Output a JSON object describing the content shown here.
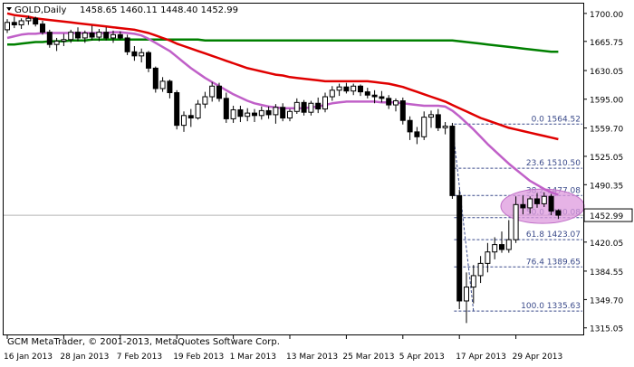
{
  "header": {
    "symbol_label": "GOLD,Daily",
    "ohlc": "1458.65 1460.11 1448.40 1452.99"
  },
  "watermark": "GCM MetaTrader, © 2001-2013, MetaQuotes Software Corp.",
  "colors": {
    "background": "#ffffff",
    "frame": "#000000",
    "candle": "#000000",
    "ma_fast": "#c060c8",
    "ma_mid": "#e00000",
    "ma_slow": "#008000",
    "fib_lines": "#3a4a8a",
    "fib_labels": "#3a4a8a",
    "current_price_line": "#b4b4b4",
    "highlight_ellipse": "#dd99dd"
  },
  "chart_data": {
    "type": "candlestick",
    "instrument": "GOLD",
    "timeframe": "Daily",
    "ylim": [
      1307,
      1712
    ],
    "y_ticks": [
      "1700.00",
      "1665.75",
      "1630.05",
      "1595.00",
      "1559.70",
      "1525.05",
      "1490.35",
      "1455.05",
      "1420.05",
      "1384.55",
      "1349.70",
      "1315.05"
    ],
    "x_ticks": [
      "16 Jan 2013",
      "28 Jan 2013",
      "7 Feb 2013",
      "19 Feb 2013",
      "1 Mar 2013",
      "13 Mar 2013",
      "25 Mar 2013",
      "5 Apr 2013",
      "17 Apr 2013",
      "29 Apr 2013"
    ],
    "current_price": "1452.99",
    "candles": [
      {
        "o": 1680,
        "h": 1693,
        "l": 1676,
        "c": 1689
      },
      {
        "o": 1689,
        "h": 1696,
        "l": 1682,
        "c": 1686
      },
      {
        "o": 1686,
        "h": 1694,
        "l": 1681,
        "c": 1691
      },
      {
        "o": 1691,
        "h": 1697,
        "l": 1686,
        "c": 1694
      },
      {
        "o": 1694,
        "h": 1696,
        "l": 1684,
        "c": 1687
      },
      {
        "o": 1687,
        "h": 1691,
        "l": 1674,
        "c": 1677
      },
      {
        "o": 1677,
        "h": 1680,
        "l": 1658,
        "c": 1662
      },
      {
        "o": 1662,
        "h": 1670,
        "l": 1654,
        "c": 1666
      },
      {
        "o": 1666,
        "h": 1675,
        "l": 1660,
        "c": 1668
      },
      {
        "o": 1668,
        "h": 1680,
        "l": 1664,
        "c": 1677
      },
      {
        "o": 1677,
        "h": 1683,
        "l": 1666,
        "c": 1670
      },
      {
        "o": 1670,
        "h": 1679,
        "l": 1664,
        "c": 1676
      },
      {
        "o": 1676,
        "h": 1685,
        "l": 1667,
        "c": 1671
      },
      {
        "o": 1671,
        "h": 1681,
        "l": 1666,
        "c": 1677
      },
      {
        "o": 1677,
        "h": 1683,
        "l": 1667,
        "c": 1670
      },
      {
        "o": 1670,
        "h": 1679,
        "l": 1664,
        "c": 1674
      },
      {
        "o": 1674,
        "h": 1678,
        "l": 1668,
        "c": 1670
      },
      {
        "o": 1670,
        "h": 1674,
        "l": 1649,
        "c": 1653
      },
      {
        "o": 1653,
        "h": 1660,
        "l": 1642,
        "c": 1648
      },
      {
        "o": 1648,
        "h": 1657,
        "l": 1640,
        "c": 1652
      },
      {
        "o": 1652,
        "h": 1654,
        "l": 1628,
        "c": 1633
      },
      {
        "o": 1633,
        "h": 1635,
        "l": 1603,
        "c": 1608
      },
      {
        "o": 1608,
        "h": 1622,
        "l": 1604,
        "c": 1617
      },
      {
        "o": 1617,
        "h": 1619,
        "l": 1596,
        "c": 1603
      },
      {
        "o": 1603,
        "h": 1606,
        "l": 1558,
        "c": 1563
      },
      {
        "o": 1563,
        "h": 1580,
        "l": 1555,
        "c": 1575
      },
      {
        "o": 1575,
        "h": 1583,
        "l": 1561,
        "c": 1572
      },
      {
        "o": 1572,
        "h": 1594,
        "l": 1570,
        "c": 1589
      },
      {
        "o": 1589,
        "h": 1604,
        "l": 1584,
        "c": 1598
      },
      {
        "o": 1598,
        "h": 1616,
        "l": 1592,
        "c": 1611
      },
      {
        "o": 1611,
        "h": 1615,
        "l": 1592,
        "c": 1596
      },
      {
        "o": 1596,
        "h": 1603,
        "l": 1566,
        "c": 1571
      },
      {
        "o": 1571,
        "h": 1587,
        "l": 1566,
        "c": 1582
      },
      {
        "o": 1582,
        "h": 1587,
        "l": 1567,
        "c": 1574
      },
      {
        "o": 1574,
        "h": 1584,
        "l": 1568,
        "c": 1578
      },
      {
        "o": 1578,
        "h": 1583,
        "l": 1567,
        "c": 1575
      },
      {
        "o": 1575,
        "h": 1586,
        "l": 1570,
        "c": 1581
      },
      {
        "o": 1581,
        "h": 1586,
        "l": 1571,
        "c": 1576
      },
      {
        "o": 1576,
        "h": 1589,
        "l": 1565,
        "c": 1585
      },
      {
        "o": 1585,
        "h": 1590,
        "l": 1568,
        "c": 1572
      },
      {
        "o": 1572,
        "h": 1583,
        "l": 1568,
        "c": 1580
      },
      {
        "o": 1580,
        "h": 1596,
        "l": 1577,
        "c": 1591
      },
      {
        "o": 1591,
        "h": 1594,
        "l": 1575,
        "c": 1579
      },
      {
        "o": 1579,
        "h": 1593,
        "l": 1575,
        "c": 1590
      },
      {
        "o": 1590,
        "h": 1597,
        "l": 1578,
        "c": 1583
      },
      {
        "o": 1583,
        "h": 1603,
        "l": 1579,
        "c": 1598
      },
      {
        "o": 1598,
        "h": 1611,
        "l": 1593,
        "c": 1606
      },
      {
        "o": 1606,
        "h": 1614,
        "l": 1599,
        "c": 1610
      },
      {
        "o": 1610,
        "h": 1615,
        "l": 1602,
        "c": 1605
      },
      {
        "o": 1605,
        "h": 1614,
        "l": 1600,
        "c": 1611
      },
      {
        "o": 1611,
        "h": 1613,
        "l": 1599,
        "c": 1604
      },
      {
        "o": 1604,
        "h": 1609,
        "l": 1596,
        "c": 1600
      },
      {
        "o": 1600,
        "h": 1606,
        "l": 1590,
        "c": 1598
      },
      {
        "o": 1598,
        "h": 1605,
        "l": 1591,
        "c": 1596
      },
      {
        "o": 1596,
        "h": 1600,
        "l": 1583,
        "c": 1588
      },
      {
        "o": 1588,
        "h": 1596,
        "l": 1580,
        "c": 1593
      },
      {
        "o": 1593,
        "h": 1597,
        "l": 1564,
        "c": 1569
      },
      {
        "o": 1569,
        "h": 1574,
        "l": 1545,
        "c": 1555
      },
      {
        "o": 1555,
        "h": 1561,
        "l": 1540,
        "c": 1549
      },
      {
        "o": 1549,
        "h": 1580,
        "l": 1545,
        "c": 1573
      },
      {
        "o": 1573,
        "h": 1581,
        "l": 1560,
        "c": 1576
      },
      {
        "o": 1576,
        "h": 1583,
        "l": 1556,
        "c": 1560
      },
      {
        "o": 1560,
        "h": 1567,
        "l": 1552,
        "c": 1562
      },
      {
        "o": 1562,
        "h": 1566,
        "l": 1473,
        "c": 1477
      },
      {
        "o": 1477,
        "h": 1484,
        "l": 1338,
        "c": 1348
      },
      {
        "o": 1348,
        "h": 1383,
        "l": 1321,
        "c": 1365
      },
      {
        "o": 1365,
        "h": 1392,
        "l": 1345,
        "c": 1379
      },
      {
        "o": 1379,
        "h": 1403,
        "l": 1370,
        "c": 1394
      },
      {
        "o": 1394,
        "h": 1419,
        "l": 1383,
        "c": 1408
      },
      {
        "o": 1408,
        "h": 1426,
        "l": 1399,
        "c": 1417
      },
      {
        "o": 1417,
        "h": 1433,
        "l": 1407,
        "c": 1411
      },
      {
        "o": 1411,
        "h": 1447,
        "l": 1407,
        "c": 1423
      },
      {
        "o": 1423,
        "h": 1476,
        "l": 1419,
        "c": 1466
      },
      {
        "o": 1466,
        "h": 1477,
        "l": 1454,
        "c": 1462
      },
      {
        "o": 1462,
        "h": 1476,
        "l": 1455,
        "c": 1473
      },
      {
        "o": 1473,
        "h": 1480,
        "l": 1462,
        "c": 1467
      },
      {
        "o": 1467,
        "h": 1481,
        "l": 1463,
        "c": 1476
      },
      {
        "o": 1476,
        "h": 1479,
        "l": 1453,
        "c": 1458
      },
      {
        "o": 1458.65,
        "h": 1460.11,
        "l": 1448.4,
        "c": 1452.99
      }
    ],
    "moving_averages": [
      {
        "color": "#008000",
        "points": [
          1662,
          1662,
          1663,
          1664,
          1665,
          1665,
          1666,
          1666,
          1666,
          1667,
          1667,
          1667,
          1668,
          1668,
          1668,
          1668,
          1668,
          1668,
          1668,
          1668,
          1668,
          1668,
          1668,
          1668,
          1668,
          1668,
          1668,
          1668,
          1667,
          1667,
          1667,
          1667,
          1667,
          1667,
          1667,
          1667,
          1667,
          1667,
          1667,
          1667,
          1667,
          1667,
          1667,
          1667,
          1667,
          1667,
          1667,
          1667,
          1667,
          1667,
          1667,
          1667,
          1667,
          1667,
          1667,
          1667,
          1667,
          1667,
          1667,
          1667,
          1667,
          1667,
          1667,
          1667,
          1666,
          1665,
          1664,
          1663,
          1662,
          1661,
          1660,
          1659,
          1658,
          1657,
          1656,
          1655,
          1654,
          1653,
          1653
        ]
      },
      {
        "color": "#e00000",
        "points": [
          1700,
          1698,
          1697,
          1696,
          1694,
          1693,
          1692,
          1691,
          1690,
          1689,
          1688,
          1687,
          1686,
          1685,
          1684,
          1683,
          1682,
          1681,
          1680,
          1678,
          1676,
          1673,
          1670,
          1667,
          1663,
          1660,
          1657,
          1654,
          1651,
          1648,
          1645,
          1642,
          1639,
          1636,
          1633,
          1631,
          1629,
          1627,
          1625,
          1624,
          1622,
          1621,
          1620,
          1619,
          1618,
          1617,
          1617,
          1617,
          1617,
          1617,
          1617,
          1617,
          1616,
          1615,
          1614,
          1612,
          1610,
          1607,
          1604,
          1601,
          1598,
          1595,
          1592,
          1588,
          1584,
          1580,
          1576,
          1572,
          1569,
          1566,
          1563,
          1560,
          1558,
          1556,
          1554,
          1552,
          1550,
          1548,
          1546
        ]
      },
      {
        "color": "#c060c8",
        "points": [
          1670,
          1672,
          1674,
          1675,
          1675,
          1676,
          1676,
          1676,
          1676,
          1676,
          1676,
          1676,
          1676,
          1676,
          1676,
          1677,
          1677,
          1676,
          1675,
          1673,
          1669,
          1664,
          1659,
          1654,
          1647,
          1640,
          1633,
          1627,
          1621,
          1616,
          1611,
          1606,
          1601,
          1597,
          1593,
          1590,
          1588,
          1586,
          1585,
          1584,
          1584,
          1584,
          1584,
          1585,
          1586,
          1588,
          1590,
          1591,
          1592,
          1592,
          1592,
          1592,
          1592,
          1591,
          1591,
          1591,
          1590,
          1589,
          1588,
          1587,
          1587,
          1587,
          1586,
          1581,
          1574,
          1566,
          1558,
          1549,
          1540,
          1532,
          1524,
          1516,
          1509,
          1502,
          1495,
          1490,
          1485,
          1481,
          1478
        ]
      }
    ],
    "fibonacci": {
      "high": 1564.52,
      "low": 1335.63,
      "levels": [
        {
          "label": "0.0 1564.52",
          "value": 1564.52
        },
        {
          "label": "23.6 1510.50",
          "value": 1510.5
        },
        {
          "label": "38.2 1477.08",
          "value": 1477.08
        },
        {
          "label": "50.0 1450.08",
          "value": 1450.08
        },
        {
          "label": "61.8 1423.07",
          "value": 1423.07
        },
        {
          "label": "76.4 1389.65",
          "value": 1389.65
        },
        {
          "label": "100.0 1335.63",
          "value": 1335.63
        }
      ]
    }
  }
}
